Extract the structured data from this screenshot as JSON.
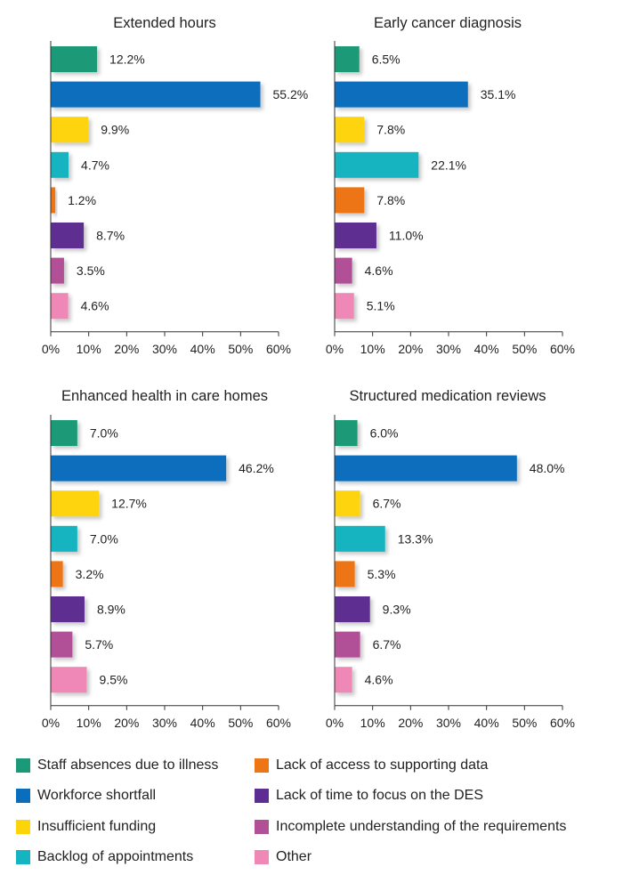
{
  "chart_data": [
    {
      "type": "bar",
      "orientation": "horizontal",
      "title": "Extended hours",
      "categories": [
        "Staff absences due to illness",
        "Workforce shortfall",
        "Insufficient funding",
        "Backlog of appointments",
        "Lack of access to supporting data",
        "Lack of time to focus on the DES",
        "Incomplete understanding of the requirements",
        "Other"
      ],
      "values": [
        12.2,
        55.2,
        9.9,
        4.7,
        1.2,
        8.7,
        3.5,
        4.6
      ],
      "value_labels": [
        "12.2%",
        "55.2%",
        "9.9%",
        "4.7%",
        "1.2%",
        "8.7%",
        "3.5%",
        "4.6%"
      ],
      "xlim": [
        0,
        60
      ],
      "xticks": [
        "0%",
        "10%",
        "20%",
        "30%",
        "40%",
        "50%",
        "60%"
      ]
    },
    {
      "type": "bar",
      "orientation": "horizontal",
      "title": "Early cancer diagnosis",
      "categories": [
        "Staff absences due to illness",
        "Workforce shortfall",
        "Insufficient funding",
        "Backlog of appointments",
        "Lack of access to supporting data",
        "Lack of time to focus on the DES",
        "Incomplete understanding of the requirements",
        "Other"
      ],
      "values": [
        6.5,
        35.1,
        7.8,
        22.1,
        7.8,
        11.0,
        4.6,
        5.1
      ],
      "value_labels": [
        "6.5%",
        "35.1%",
        "7.8%",
        "22.1%",
        "7.8%",
        "11.0%",
        "4.6%",
        "5.1%"
      ],
      "xlim": [
        0,
        60
      ],
      "xticks": [
        "0%",
        "10%",
        "20%",
        "30%",
        "40%",
        "50%",
        "60%"
      ]
    },
    {
      "type": "bar",
      "orientation": "horizontal",
      "title": "Enhanced health in care homes",
      "categories": [
        "Staff absences due to illness",
        "Workforce shortfall",
        "Insufficient funding",
        "Backlog of appointments",
        "Lack of access to supporting data",
        "Lack of time to focus on the DES",
        "Incomplete understanding of the requirements",
        "Other"
      ],
      "values": [
        7.0,
        46.2,
        12.7,
        7.0,
        3.2,
        8.9,
        5.7,
        9.5
      ],
      "value_labels": [
        "7.0%",
        "46.2%",
        "12.7%",
        "7.0%",
        "3.2%",
        "8.9%",
        "5.7%",
        "9.5%"
      ],
      "xlim": [
        0,
        60
      ],
      "xticks": [
        "0%",
        "10%",
        "20%",
        "30%",
        "40%",
        "50%",
        "60%"
      ]
    },
    {
      "type": "bar",
      "orientation": "horizontal",
      "title": "Structured medication reviews",
      "categories": [
        "Staff absences due to illness",
        "Workforce shortfall",
        "Insufficient funding",
        "Backlog of appointments",
        "Lack of access to supporting data",
        "Lack of time to focus on the DES",
        "Incomplete understanding of the requirements",
        "Other"
      ],
      "values": [
        6.0,
        48.0,
        6.7,
        13.3,
        5.3,
        9.3,
        6.7,
        4.6
      ],
      "value_labels": [
        "6.0%",
        "48.0%",
        "6.7%",
        "13.3%",
        "5.3%",
        "9.3%",
        "6.7%",
        "4.6%"
      ],
      "xlim": [
        0,
        60
      ],
      "xticks": [
        "0%",
        "10%",
        "20%",
        "30%",
        "40%",
        "50%",
        "60%"
      ]
    }
  ],
  "colors": [
    "#1a9a78",
    "#0a6ebd",
    "#fdd40a",
    "#14b4c0",
    "#ee7513",
    "#5e2d91",
    "#b14f97",
    "#ef88b6"
  ],
  "legend": [
    {
      "label": "Staff absences due to illness",
      "color": "#1a9a78"
    },
    {
      "label": "Workforce shortfall",
      "color": "#0a6ebd"
    },
    {
      "label": "Insufficient funding",
      "color": "#fdd40a"
    },
    {
      "label": "Backlog of appointments",
      "color": "#14b4c0"
    },
    {
      "label": "Lack of access to supporting data",
      "color": "#ee7513"
    },
    {
      "label": "Lack of time to focus on the DES",
      "color": "#5e2d91"
    },
    {
      "label": "Incomplete understanding of the requirements",
      "color": "#b14f97"
    },
    {
      "label": "Other",
      "color": "#ef88b6"
    }
  ]
}
